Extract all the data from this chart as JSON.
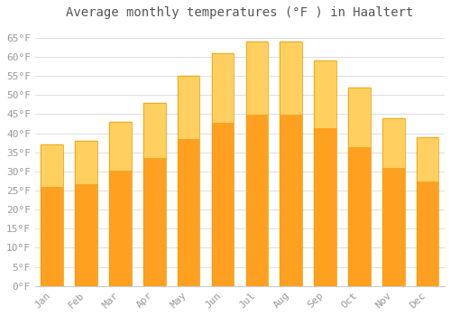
{
  "title": "Average monthly temperatures (°F ) in Haaltert",
  "months": [
    "Jan",
    "Feb",
    "Mar",
    "Apr",
    "May",
    "Jun",
    "Jul",
    "Aug",
    "Sep",
    "Oct",
    "Nov",
    "Dec"
  ],
  "values": [
    37,
    38,
    43,
    48,
    55,
    61,
    64,
    64,
    59,
    52,
    44,
    39
  ],
  "bar_color_top": "#FFB733",
  "bar_color_bottom": "#FF9500",
  "bar_edge_color": "#E8A000",
  "background_color": "#ffffff",
  "plot_bg_color": "#ffffff",
  "grid_color": "#e0e0e0",
  "yticks": [
    0,
    5,
    10,
    15,
    20,
    25,
    30,
    35,
    40,
    45,
    50,
    55,
    60,
    65
  ],
  "ylim": [
    0,
    68
  ],
  "title_fontsize": 10,
  "tick_fontsize": 8,
  "tick_color": "#999999",
  "title_color": "#555555",
  "font_family": "monospace"
}
